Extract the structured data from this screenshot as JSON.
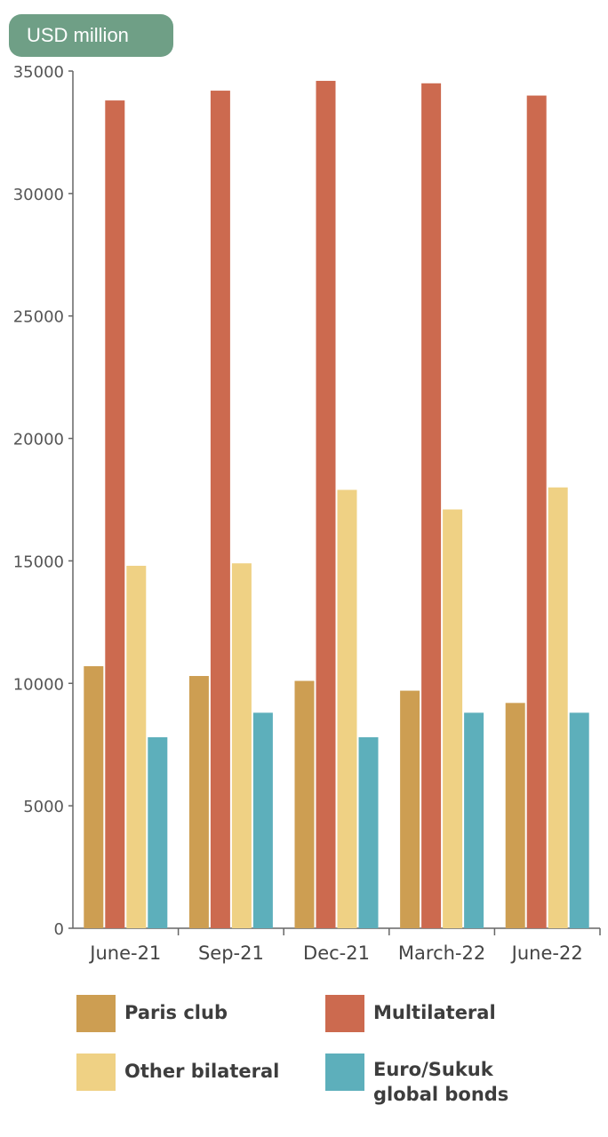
{
  "unit_label": "USD million",
  "colors": {
    "paris_club": "#cd9e52",
    "multilateral": "#cc6a4f",
    "other_bilateral": "#efd184",
    "euro_sukuk": "#5dafbb",
    "badge": "#6f9f86"
  },
  "legend": [
    {
      "label": "Paris club",
      "color_key": "paris_club"
    },
    {
      "label": "Multilateral",
      "color_key": "multilateral"
    },
    {
      "label": "Other bilateral",
      "color_key": "other_bilateral"
    },
    {
      "label": "Euro/Sukuk\nglobal bonds",
      "color_key": "euro_sukuk"
    }
  ],
  "chart_data": {
    "type": "bar",
    "title": "",
    "xlabel": "",
    "ylabel": "USD million",
    "ylim": [
      0,
      35000
    ],
    "yticks": [
      0,
      5000,
      10000,
      15000,
      20000,
      25000,
      30000,
      35000
    ],
    "categories": [
      "June-21",
      "Sep-21",
      "Dec-21",
      "March-22",
      "June-22"
    ],
    "series": [
      {
        "name": "Paris club",
        "color_key": "paris_club",
        "values": [
          10700,
          10300,
          10100,
          9700,
          9200
        ]
      },
      {
        "name": "Multilateral",
        "color_key": "multilateral",
        "values": [
          33800,
          34200,
          34600,
          34500,
          34000
        ]
      },
      {
        "name": "Other bilateral",
        "color_key": "other_bilateral",
        "values": [
          14800,
          14900,
          17900,
          17100,
          18000
        ]
      },
      {
        "name": "Euro/Sukuk global bonds",
        "color_key": "euro_sukuk",
        "values": [
          7800,
          8800,
          7800,
          8800,
          8800
        ]
      }
    ],
    "grid": false,
    "legend_position": "bottom"
  }
}
